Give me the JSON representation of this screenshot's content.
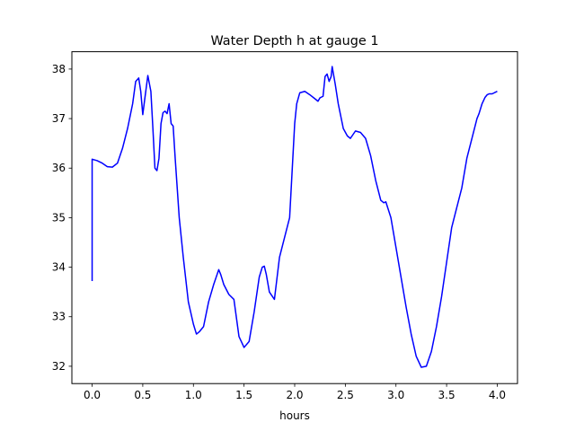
{
  "chart_data": {
    "type": "line",
    "title": "Water Depth h at gauge 1",
    "xlabel": "hours",
    "ylabel": "",
    "xlim": [
      -0.2,
      4.2
    ],
    "ylim": [
      31.65,
      38.35
    ],
    "x_ticks": [
      "0.0",
      "0.5",
      "1.0",
      "1.5",
      "2.0",
      "2.5",
      "3.0",
      "3.5",
      "4.0"
    ],
    "y_ticks": [
      "32",
      "33",
      "34",
      "35",
      "36",
      "37",
      "38"
    ],
    "grid": false,
    "legend": "none",
    "series": [
      {
        "color": "#0000ff",
        "x": [
          0.0,
          0.0,
          0.05,
          0.1,
          0.15,
          0.2,
          0.25,
          0.3,
          0.35,
          0.4,
          0.43,
          0.46,
          0.48,
          0.5,
          0.52,
          0.55,
          0.58,
          0.6,
          0.62,
          0.64,
          0.66,
          0.68,
          0.7,
          0.72,
          0.74,
          0.76,
          0.78,
          0.8,
          0.82,
          0.84,
          0.86,
          0.9,
          0.95,
          1.0,
          1.03,
          1.06,
          1.1,
          1.15,
          1.2,
          1.25,
          1.27,
          1.3,
          1.35,
          1.4,
          1.42,
          1.45,
          1.5,
          1.55,
          1.6,
          1.65,
          1.68,
          1.7,
          1.72,
          1.75,
          1.8,
          1.85,
          1.9,
          1.95,
          2.0,
          2.02,
          2.05,
          2.1,
          2.15,
          2.2,
          2.23,
          2.25,
          2.28,
          2.3,
          2.32,
          2.34,
          2.36,
          2.37,
          2.4,
          2.43,
          2.45,
          2.48,
          2.52,
          2.55,
          2.6,
          2.65,
          2.7,
          2.75,
          2.8,
          2.85,
          2.88,
          2.9,
          2.95,
          3.0,
          3.05,
          3.1,
          3.15,
          3.2,
          3.25,
          3.3,
          3.35,
          3.4,
          3.45,
          3.5,
          3.55,
          3.6,
          3.65,
          3.7,
          3.75,
          3.8,
          3.82,
          3.85,
          3.88,
          3.9,
          3.92,
          3.95,
          4.0
        ],
        "y": [
          33.72,
          36.18,
          36.15,
          36.1,
          36.03,
          36.02,
          36.1,
          36.4,
          36.8,
          37.3,
          37.75,
          37.82,
          37.55,
          37.08,
          37.4,
          37.87,
          37.55,
          36.8,
          36.0,
          35.95,
          36.2,
          36.9,
          37.12,
          37.15,
          37.1,
          37.3,
          36.9,
          36.85,
          36.2,
          35.6,
          35.0,
          34.2,
          33.3,
          32.85,
          32.65,
          32.7,
          32.8,
          33.3,
          33.65,
          33.95,
          33.85,
          33.65,
          33.45,
          33.35,
          33.05,
          32.6,
          32.38,
          32.5,
          33.1,
          33.8,
          34.0,
          34.02,
          33.85,
          33.5,
          33.35,
          34.2,
          34.6,
          35.0,
          36.9,
          37.3,
          37.52,
          37.55,
          37.48,
          37.4,
          37.35,
          37.42,
          37.45,
          37.85,
          37.9,
          37.75,
          37.85,
          38.05,
          37.7,
          37.3,
          37.1,
          36.8,
          36.65,
          36.6,
          36.75,
          36.72,
          36.6,
          36.25,
          35.75,
          35.35,
          35.3,
          35.32,
          35.0,
          34.4,
          33.8,
          33.2,
          32.65,
          32.2,
          31.98,
          32.0,
          32.3,
          32.8,
          33.4,
          34.1,
          34.8,
          35.2,
          35.6,
          36.2,
          36.6,
          37.0,
          37.1,
          37.3,
          37.43,
          37.48,
          37.5,
          37.5,
          37.55
        ]
      }
    ]
  }
}
